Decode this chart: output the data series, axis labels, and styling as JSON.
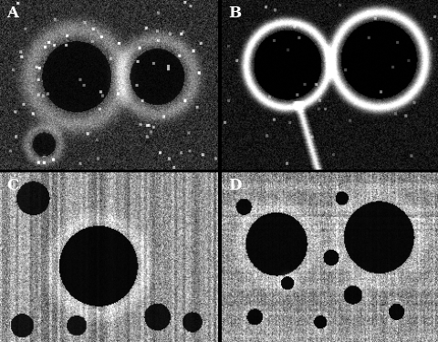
{
  "labels": [
    "A",
    "B",
    "C",
    "D"
  ],
  "label_color": "white",
  "label_fontsize": 12,
  "label_fontweight": "bold",
  "background_color": "black",
  "figsize": [
    4.81,
    3.75
  ],
  "dpi": 100
}
